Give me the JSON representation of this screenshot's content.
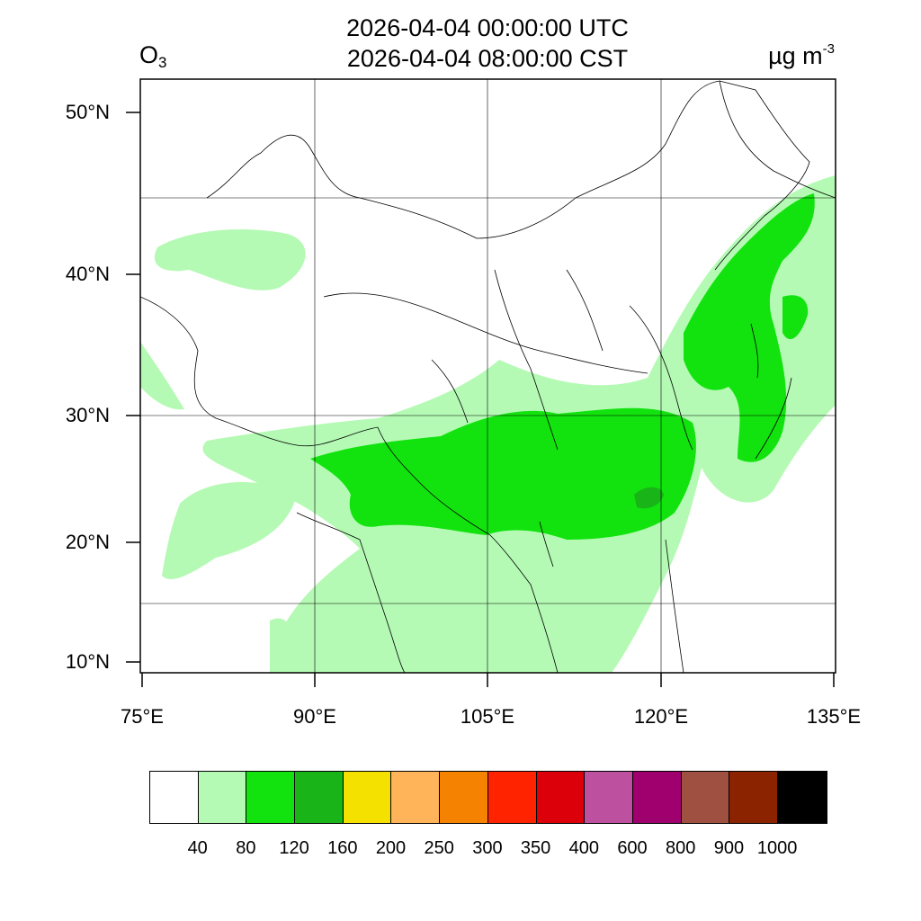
{
  "header": {
    "utc_time": "2026-04-04 00:00:00 UTC",
    "local_time": "2026-04-04 08:00:00 CST",
    "variable_main": "O",
    "variable_sub": "3",
    "unit_main": "µg m",
    "unit_sup": "-3"
  },
  "axes": {
    "lat_labels": [
      "50°N",
      "40°N",
      "30°N",
      "20°N",
      "10°N"
    ],
    "lon_labels": [
      "75°E",
      "90°E",
      "105°E",
      "120°E",
      "135°E"
    ]
  },
  "colors": {
    "ocean_bg": "#ffffff",
    "land_border": "#000000",
    "grid_line": "#000000"
  },
  "colorbar": {
    "colors": [
      "#ffffff",
      "#b4fab4",
      "#12e30e",
      "#18b418",
      "#f5e100",
      "#ffb45a",
      "#f58200",
      "#ff2300",
      "#dc000a",
      "#be50a0",
      "#a0006e",
      "#a05041",
      "#8c2300",
      "#000000"
    ],
    "ticks": [
      "40",
      "80",
      "120",
      "160",
      "200",
      "250",
      "300",
      "350",
      "400",
      "600",
      "800",
      "900",
      "1000"
    ]
  }
}
